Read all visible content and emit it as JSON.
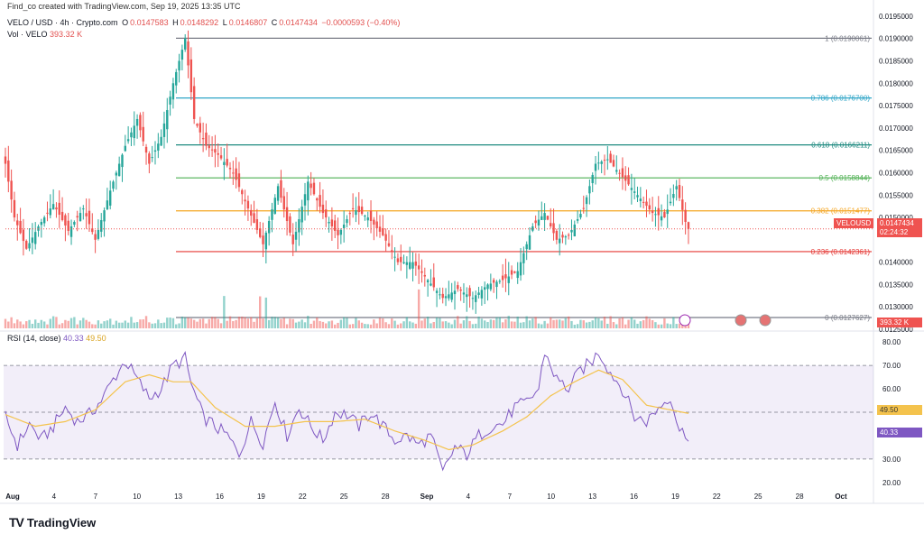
{
  "header": {
    "creator_line": "Find_co created with TradingView.com, Sep 19, 2025 13:35 UTC",
    "symbol": "VELO / USD · 4h · Crypto.com",
    "open_label": "O",
    "open": "0.0147583",
    "high_label": "H",
    "high": "0.0148292",
    "low_label": "L",
    "low": "0.0146807",
    "close_label": "C",
    "close": "0.0147434",
    "change": "−0.0000593 (−0.40%)",
    "vol_label": "Vol · VELO",
    "vol_value": "393.32 K"
  },
  "rsi_header": {
    "label": "RSI (14, close)",
    "rsi": "40.33",
    "ma": "49.50"
  },
  "price_tag": {
    "symbol": "VELOUSD",
    "price": "0.0147434",
    "countdown": "02:24:32"
  },
  "volume_tag": "393.32 K",
  "rsi_tags": {
    "ma": "49.50",
    "rsi": "40.33"
  },
  "brand": {
    "logo": "TV",
    "name": "TradingView"
  },
  "colors": {
    "up": "#26a69a",
    "down": "#ef5350",
    "rsi": "#7e57c2",
    "rsi_ma": "#f4c34d",
    "fib_blue": "#2fa5c7",
    "fib_teal": "#1f8a80",
    "fib_green": "#4caf50",
    "fib_orange": "#f5a623",
    "fib_red": "#e53935",
    "fib_gray": "#787b86"
  },
  "event_icons": [
    "lightning-icon",
    "us-flag-icon",
    "us-flag-icon"
  ],
  "chart_data": [
    {
      "type": "candlestick",
      "title": "VELO / USD · 4h · Crypto.com",
      "ylim": [
        0.0125,
        0.0197
      ],
      "y_ticks": [
        "0.0195000",
        "0.0190000",
        "0.0185000",
        "0.0180000",
        "0.0175000",
        "0.0170000",
        "0.0165000",
        "0.0160000",
        "0.0155000",
        "0.0150000",
        "0.0140000",
        "0.0135000",
        "0.0130000",
        "0.0125000"
      ],
      "x_ticks": [
        "Aug",
        "4",
        "7",
        "10",
        "13",
        "16",
        "19",
        "22",
        "25",
        "28",
        "Sep",
        "4",
        "7",
        "10",
        "13",
        "16",
        "19",
        "22",
        "25",
        "28",
        "Oct"
      ],
      "fib_levels": [
        {
          "label": "1 (0.0190061)",
          "value": 0.0190061,
          "color": "#787b86"
        },
        {
          "label": "0.786 (0.0176700)",
          "value": 0.01767,
          "color": "#2fa5c7"
        },
        {
          "label": "0.618 (0.0166211)",
          "value": 0.0166211,
          "color": "#1f8a80"
        },
        {
          "label": "0.5 (0.0158844)",
          "value": 0.0158844,
          "color": "#4caf50"
        },
        {
          "label": "0.382 (0.0151477)",
          "value": 0.0151477,
          "color": "#f5a623"
        },
        {
          "label": "0.236 (0.0142361)",
          "value": 0.0142361,
          "color": "#e53935"
        },
        {
          "label": "0 (0.0127627)",
          "value": 0.0127627,
          "color": "#787b86"
        }
      ],
      "close_anchors": [
        [
          0,
          0.0162
        ],
        [
          3,
          0.015
        ],
        [
          7,
          0.0143
        ],
        [
          11,
          0.0148
        ],
        [
          16,
          0.0153
        ],
        [
          21,
          0.0147
        ],
        [
          26,
          0.0152
        ],
        [
          30,
          0.0145
        ],
        [
          35,
          0.0156
        ],
        [
          40,
          0.0166
        ],
        [
          44,
          0.0172
        ],
        [
          48,
          0.0162
        ],
        [
          52,
          0.0168
        ],
        [
          56,
          0.018
        ],
        [
          60,
          0.019
        ],
        [
          63,
          0.0172
        ],
        [
          67,
          0.0166
        ],
        [
          71,
          0.0164
        ],
        [
          76,
          0.016
        ],
        [
          81,
          0.0152
        ],
        [
          86,
          0.0144
        ],
        [
          91,
          0.0157
        ],
        [
          96,
          0.0144
        ],
        [
          101,
          0.0158
        ],
        [
          106,
          0.0151
        ],
        [
          111,
          0.0146
        ],
        [
          116,
          0.0152
        ],
        [
          121,
          0.015
        ],
        [
          126,
          0.0146
        ],
        [
          131,
          0.014
        ],
        [
          136,
          0.014
        ],
        [
          141,
          0.0136
        ],
        [
          146,
          0.0132
        ],
        [
          151,
          0.0134
        ],
        [
          156,
          0.0132
        ],
        [
          161,
          0.0135
        ],
        [
          166,
          0.0136
        ],
        [
          171,
          0.0138
        ],
        [
          176,
          0.0148
        ],
        [
          180,
          0.0151
        ],
        [
          184,
          0.0145
        ],
        [
          188,
          0.0146
        ],
        [
          193,
          0.0152
        ],
        [
          197,
          0.0162
        ],
        [
          201,
          0.0163
        ],
        [
          206,
          0.0159
        ],
        [
          211,
          0.0155
        ],
        [
          216,
          0.0151
        ],
        [
          220,
          0.015
        ],
        [
          224,
          0.0157
        ],
        [
          227,
          0.0149
        ],
        [
          228,
          0.0147434
        ]
      ],
      "last_price": 0.0147434
    },
    {
      "type": "line",
      "title": "RSI (14, close)",
      "ylim": [
        18,
        82
      ],
      "y_ticks": [
        "80.00",
        "70.00",
        "60.00",
        "50.00",
        "30.00",
        "20.00"
      ],
      "bands": {
        "upper": 70,
        "middle": 50,
        "lower": 30
      },
      "series": [
        {
          "name": "RSI",
          "color": "#7e57c2",
          "anchors": [
            [
              0,
              48
            ],
            [
              4,
              36
            ],
            [
              8,
              45
            ],
            [
              12,
              38
            ],
            [
              16,
              44
            ],
            [
              20,
              52
            ],
            [
              24,
              46
            ],
            [
              28,
              49
            ],
            [
              32,
              55
            ],
            [
              36,
              64
            ],
            [
              40,
              72
            ],
            [
              44,
              64
            ],
            [
              48,
              56
            ],
            [
              52,
              60
            ],
            [
              56,
              70
            ],
            [
              60,
              73
            ],
            [
              62,
              62
            ],
            [
              66,
              48
            ],
            [
              70,
              44
            ],
            [
              74,
              40
            ],
            [
              78,
              32
            ],
            [
              82,
              46
            ],
            [
              86,
              37
            ],
            [
              90,
              55
            ],
            [
              94,
              40
            ],
            [
              98,
              52
            ],
            [
              102,
              44
            ],
            [
              106,
              38
            ],
            [
              110,
              50
            ],
            [
              114,
              49
            ],
            [
              118,
              44
            ],
            [
              122,
              50
            ],
            [
              126,
              44
            ],
            [
              130,
              38
            ],
            [
              134,
              40
            ],
            [
              138,
              36
            ],
            [
              142,
              40
            ],
            [
              146,
              24
            ],
            [
              150,
              35
            ],
            [
              154,
              32
            ],
            [
              158,
              40
            ],
            [
              162,
              44
            ],
            [
              166,
              45
            ],
            [
              170,
              52
            ],
            [
              174,
              54
            ],
            [
              178,
              60
            ],
            [
              180,
              76
            ],
            [
              184,
              64
            ],
            [
              188,
              60
            ],
            [
              192,
              68
            ],
            [
              196,
              72
            ],
            [
              198,
              76
            ],
            [
              202,
              67
            ],
            [
              206,
              60
            ],
            [
              210,
              48
            ],
            [
              214,
              46
            ],
            [
              218,
              52
            ],
            [
              222,
              57
            ],
            [
              225,
              42
            ],
            [
              228,
              40.33
            ]
          ]
        },
        {
          "name": "MA",
          "color": "#f4c34d",
          "anchors": [
            [
              0,
              49
            ],
            [
              10,
              44
            ],
            [
              20,
              46
            ],
            [
              30,
              51
            ],
            [
              40,
              63
            ],
            [
              48,
              66
            ],
            [
              56,
              63
            ],
            [
              62,
              63
            ],
            [
              70,
              52
            ],
            [
              80,
              44
            ],
            [
              90,
              44
            ],
            [
              100,
              46
            ],
            [
              110,
              46
            ],
            [
              120,
              47
            ],
            [
              130,
              42
            ],
            [
              140,
              38
            ],
            [
              148,
              34
            ],
            [
              156,
              36
            ],
            [
              166,
              42
            ],
            [
              174,
              48
            ],
            [
              182,
              57
            ],
            [
              190,
              63
            ],
            [
              198,
              68
            ],
            [
              206,
              64
            ],
            [
              214,
              53
            ],
            [
              222,
              51
            ],
            [
              228,
              49.5
            ]
          ]
        }
      ]
    }
  ]
}
